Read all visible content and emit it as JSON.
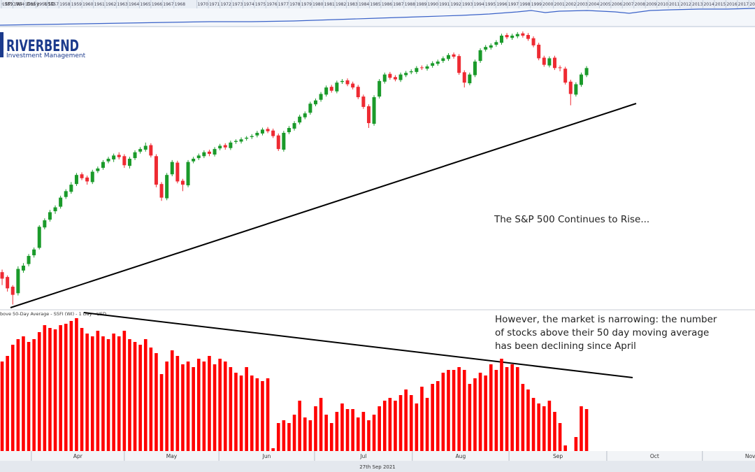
{
  "logo": {
    "name": "RIVERBEND",
    "tagline": "Investment Management"
  },
  "navigator": {
    "years": [
      1953,
      1954,
      1955,
      1956,
      1957,
      1958,
      1959,
      1960,
      1961,
      1962,
      1963,
      1964,
      1965,
      1966,
      1967,
      1968,
      1970,
      1971,
      1972,
      1973,
      1974,
      1975,
      1976,
      1977,
      1978,
      1979,
      1980,
      1981,
      1982,
      1983,
      1984,
      1985,
      1986,
      1987,
      1988,
      1989,
      1990,
      1991,
      1992,
      1993,
      1994,
      1995,
      1996,
      1997,
      1998,
      1999,
      2000,
      2001,
      2002,
      2003,
      2004,
      2005,
      2006,
      2007,
      2008,
      2009,
      2010,
      2011,
      2012,
      2013,
      2014,
      2015,
      2016,
      2017,
      2018
    ]
  },
  "chart_data": [
    {
      "type": "candlestick",
      "title": "- SPX:WI - Daily - USD",
      "annotation": "The S&P 500 Continues to Rise...",
      "categories": [
        null,
        null,
        null,
        null,
        null,
        null,
        null,
        null,
        null,
        null,
        null,
        null,
        null,
        null,
        null,
        null,
        null,
        null,
        null,
        null,
        null,
        null,
        null,
        null,
        null,
        null,
        null,
        null,
        null,
        null,
        null,
        null,
        null,
        null,
        null,
        null,
        null,
        null,
        null,
        null,
        null,
        null,
        null,
        null,
        null,
        null,
        null,
        null,
        null,
        null,
        null,
        null,
        null,
        null,
        null,
        null,
        null,
        null,
        null,
        null,
        null,
        null,
        null,
        null,
        null,
        null,
        null,
        null,
        null,
        null,
        null,
        null,
        null,
        null,
        null,
        null,
        null,
        null,
        null,
        null,
        null,
        null,
        null,
        null,
        null,
        null,
        null,
        null,
        null,
        null,
        null,
        null,
        null,
        null,
        null,
        null,
        null,
        null,
        null,
        null,
        null,
        null,
        null,
        null,
        null,
        null,
        null,
        null,
        null,
        null,
        null
      ],
      "open": [
        3810,
        3795,
        3765,
        3745,
        3815,
        3835,
        3862,
        3885,
        3948,
        3972,
        3998,
        4012,
        4042,
        4058,
        4082,
        4112,
        4102,
        4088,
        4122,
        4132,
        4152,
        4158,
        4172,
        4168,
        4138,
        4162,
        4182,
        4188,
        4202,
        4168,
        4082,
        4038,
        4112,
        4148,
        4092,
        4078,
        4152,
        4162,
        4168,
        4182,
        4173,
        4192,
        4202,
        4193,
        4212,
        4213,
        4222,
        4227,
        4232,
        4238,
        4252,
        4247,
        4232,
        4188,
        4242,
        4253,
        4272,
        4288,
        4302,
        4328,
        4342,
        4358,
        4382,
        4368,
        4397,
        4402,
        4392,
        4382,
        4352,
        4322,
        4268,
        4352,
        4398,
        4422,
        4412,
        4403,
        4418,
        4427,
        4428,
        4442,
        4438,
        4447,
        4453,
        4462,
        4468,
        4482,
        4477,
        4427,
        4393,
        4418,
        4462,
        4497,
        4503,
        4512,
        4518,
        4542,
        4533,
        4538,
        4547,
        4542,
        4532,
        4512,
        4472,
        4448,
        4472,
        4442,
        4438,
        4398,
        4358,
        4388,
        4418
      ],
      "high": [
        3818,
        3800,
        3770,
        3828,
        3838,
        3866,
        3886,
        3955,
        3976,
        4002,
        4016,
        4046,
        4066,
        4088,
        4116,
        4118,
        4108,
        4126,
        4136,
        4156,
        4166,
        4176,
        4180,
        4174,
        4166,
        4186,
        4196,
        4210,
        4208,
        4174,
        4088,
        4116,
        4156,
        4154,
        4098,
        4156,
        4166,
        4176,
        4186,
        4188,
        4196,
        4206,
        4208,
        4216,
        4220,
        4226,
        4230,
        4236,
        4246,
        4256,
        4258,
        4253,
        4238,
        4246,
        4261,
        4276,
        4296,
        4306,
        4336,
        4346,
        4366,
        4386,
        4388,
        4401,
        4406,
        4408,
        4398,
        4388,
        4358,
        4328,
        4356,
        4406,
        4426,
        4428,
        4418,
        4426,
        4431,
        4436,
        4446,
        4448,
        4451,
        4461,
        4466,
        4476,
        4486,
        4488,
        4483,
        4433,
        4426,
        4466,
        4501,
        4511,
        4516,
        4526,
        4546,
        4548,
        4546,
        4551,
        4553,
        4548,
        4538,
        4518,
        4478,
        4476,
        4478,
        4448,
        4444,
        4404,
        4396,
        4426,
        4446
      ],
      "low": [
        3770,
        3750,
        3710,
        3738,
        3808,
        3828,
        3855,
        3880,
        3942,
        3966,
        3990,
        4006,
        4036,
        4052,
        4076,
        4094,
        4080,
        4082,
        4116,
        4126,
        4146,
        4150,
        4158,
        4132,
        4130,
        4156,
        4176,
        4182,
        4164,
        4072,
        4030,
        4032,
        4106,
        4084,
        4060,
        4072,
        4146,
        4156,
        4162,
        4168,
        4167,
        4186,
        4188,
        4187,
        4206,
        4207,
        4216,
        4221,
        4226,
        4232,
        4239,
        4224,
        4184,
        4182,
        4236,
        4247,
        4266,
        4282,
        4296,
        4322,
        4336,
        4352,
        4364,
        4362,
        4391,
        4384,
        4374,
        4344,
        4314,
        4255,
        4262,
        4346,
        4392,
        4404,
        4399,
        4397,
        4412,
        4421,
        4422,
        4434,
        4432,
        4441,
        4447,
        4456,
        4462,
        4469,
        4419,
        4380,
        4387,
        4412,
        4456,
        4491,
        4497,
        4506,
        4512,
        4529,
        4527,
        4532,
        4534,
        4524,
        4504,
        4464,
        4444,
        4442,
        4434,
        4430,
        4389,
        4325,
        4352,
        4382,
        4412
      ],
      "close": [
        3790,
        3760,
        3740,
        3820,
        3830,
        3860,
        3880,
        3950,
        3970,
        3995,
        4010,
        4040,
        4060,
        4080,
        4110,
        4100,
        4090,
        4120,
        4130,
        4150,
        4160,
        4170,
        4165,
        4140,
        4160,
        4180,
        4190,
        4200,
        4170,
        4080,
        4040,
        4110,
        4150,
        4090,
        4080,
        4150,
        4160,
        4170,
        4180,
        4175,
        4190,
        4200,
        4195,
        4210,
        4215,
        4220,
        4225,
        4230,
        4240,
        4250,
        4245,
        4230,
        4190,
        4240,
        4255,
        4270,
        4290,
        4300,
        4330,
        4340,
        4360,
        4380,
        4370,
        4395,
        4400,
        4390,
        4380,
        4350,
        4320,
        4270,
        4350,
        4400,
        4420,
        4410,
        4405,
        4420,
        4425,
        4430,
        4440,
        4440,
        4445,
        4455,
        4460,
        4470,
        4480,
        4475,
        4425,
        4395,
        4420,
        4460,
        4495,
        4505,
        4510,
        4520,
        4540,
        4535,
        4540,
        4545,
        4540,
        4530,
        4510,
        4470,
        4450,
        4470,
        4440,
        4440,
        4395,
        4360,
        4390,
        4420,
        4440
      ],
      "up_color": "#1a9a2a",
      "down_color": "#ee2a32",
      "xlim": [
        -0.4,
        141.7
      ],
      "ylim": [
        3696,
        4568
      ]
    },
    {
      "type": "bar",
      "title": "bove 50-Day Average - S5FI (WI) - 1 Day - USD",
      "annotation": "However, the market is narrowing: the number of stocks above their 50 day moving average has been declining since April",
      "categories": [
        null,
        null,
        null,
        null,
        null,
        null,
        null,
        null,
        null,
        null,
        null,
        null,
        null,
        null,
        null,
        null,
        null,
        null,
        null,
        null,
        null,
        null,
        null,
        null,
        null,
        null,
        null,
        null,
        null,
        null,
        null,
        null,
        null,
        null,
        null,
        null,
        null,
        null,
        null,
        null,
        null,
        null,
        null,
        null,
        null,
        null,
        null,
        null,
        null,
        null,
        null,
        null,
        null,
        null,
        null,
        null,
        null,
        null,
        null,
        null,
        null,
        null,
        null,
        null,
        null,
        null,
        null,
        null,
        null,
        null,
        null,
        null,
        null,
        null,
        null,
        null,
        null,
        null,
        null,
        null,
        null,
        null,
        null,
        null,
        null,
        null,
        null,
        null,
        null,
        null,
        null,
        null,
        null,
        null,
        null,
        null,
        null,
        null,
        null,
        null,
        null,
        null,
        null,
        null,
        null,
        null,
        null,
        null,
        null,
        null,
        null
      ],
      "values": [
        64,
        68,
        76,
        80,
        82,
        78,
        80,
        85,
        90,
        88,
        87,
        90,
        91,
        93,
        95,
        88,
        84,
        82,
        86,
        82,
        80,
        84,
        82,
        86,
        80,
        78,
        76,
        80,
        74,
        70,
        55,
        64,
        72,
        68,
        62,
        64,
        60,
        66,
        64,
        68,
        62,
        66,
        64,
        60,
        56,
        54,
        60,
        54,
        52,
        50,
        52,
        2,
        20,
        22,
        20,
        26,
        36,
        24,
        22,
        32,
        38,
        26,
        20,
        28,
        34,
        30,
        30,
        24,
        28,
        22,
        26,
        32,
        36,
        38,
        36,
        40,
        44,
        40,
        34,
        46,
        38,
        48,
        50,
        56,
        58,
        58,
        60,
        58,
        48,
        52,
        56,
        54,
        62,
        58,
        66,
        60,
        62,
        60,
        48,
        44,
        38,
        34,
        32,
        36,
        28,
        20,
        4,
        0,
        10,
        32,
        30
      ],
      "color": "#ff0000",
      "xlim": [
        -0.4,
        141.7
      ],
      "ylim": [
        0,
        100
      ],
      "xticks": [
        {
          "value": 5.5,
          "label": "Apr"
        },
        {
          "value": 23.0,
          "label": "May"
        },
        {
          "value": 40.8,
          "label": "Jun"
        },
        {
          "value": 58.8,
          "label": "Jul"
        },
        {
          "value": 77.2,
          "label": "Aug"
        },
        {
          "value": 95.4,
          "label": "Sep"
        },
        {
          "value": 113.8,
          "label": "Oct"
        },
        {
          "value": 131.8,
          "label": "Nov"
        }
      ],
      "x_axis_date": "27th Sep 2021"
    }
  ]
}
